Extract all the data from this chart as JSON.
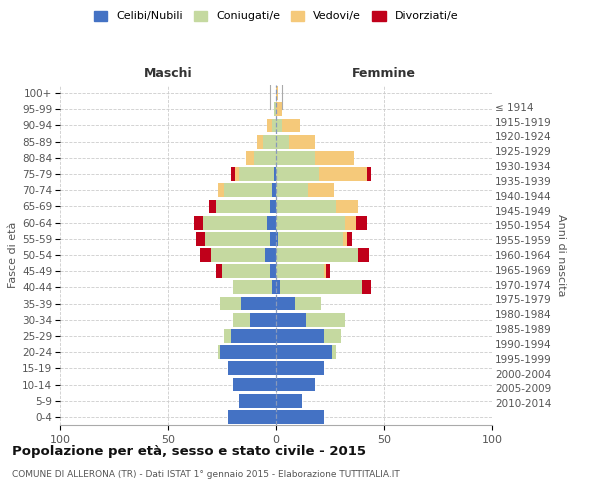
{
  "age_groups": [
    "0-4",
    "5-9",
    "10-14",
    "15-19",
    "20-24",
    "25-29",
    "30-34",
    "35-39",
    "40-44",
    "45-49",
    "50-54",
    "55-59",
    "60-64",
    "65-69",
    "70-74",
    "75-79",
    "80-84",
    "85-89",
    "90-94",
    "95-99",
    "100+"
  ],
  "birth_years": [
    "2010-2014",
    "2005-2009",
    "2000-2004",
    "1995-1999",
    "1990-1994",
    "1985-1989",
    "1980-1984",
    "1975-1979",
    "1970-1974",
    "1965-1969",
    "1960-1964",
    "1955-1959",
    "1950-1954",
    "1945-1949",
    "1940-1944",
    "1935-1939",
    "1930-1934",
    "1925-1929",
    "1920-1924",
    "1915-1919",
    "≤ 1914"
  ],
  "colors": {
    "celibi": "#4472C4",
    "coniugati": "#C5D9A0",
    "vedovi": "#F5C97A",
    "divorziati": "#C0001A"
  },
  "maschi": {
    "celibi": [
      22,
      17,
      20,
      22,
      26,
      21,
      12,
      16,
      2,
      3,
      5,
      3,
      4,
      3,
      2,
      1,
      0,
      0,
      0,
      0,
      0
    ],
    "coniugati": [
      0,
      0,
      0,
      0,
      1,
      3,
      8,
      10,
      18,
      22,
      25,
      30,
      30,
      25,
      22,
      16,
      10,
      6,
      2,
      1,
      0
    ],
    "vedovi": [
      0,
      0,
      0,
      0,
      0,
      0,
      0,
      0,
      0,
      0,
      0,
      0,
      0,
      0,
      3,
      2,
      4,
      3,
      2,
      0,
      0
    ],
    "divorziati": [
      0,
      0,
      0,
      0,
      0,
      0,
      0,
      0,
      0,
      3,
      5,
      4,
      4,
      3,
      0,
      2,
      0,
      0,
      0,
      0,
      0
    ]
  },
  "femmine": {
    "celibi": [
      22,
      12,
      18,
      22,
      26,
      22,
      14,
      9,
      2,
      0,
      0,
      1,
      0,
      0,
      0,
      0,
      0,
      0,
      0,
      0,
      0
    ],
    "coniugati": [
      0,
      0,
      0,
      0,
      2,
      8,
      18,
      12,
      38,
      22,
      38,
      30,
      32,
      28,
      15,
      20,
      18,
      6,
      3,
      0,
      0
    ],
    "vedovi": [
      0,
      0,
      0,
      0,
      0,
      0,
      0,
      0,
      0,
      1,
      0,
      2,
      5,
      10,
      12,
      22,
      18,
      12,
      8,
      3,
      1
    ],
    "divorziati": [
      0,
      0,
      0,
      0,
      0,
      0,
      0,
      0,
      4,
      2,
      5,
      2,
      5,
      0,
      0,
      2,
      0,
      0,
      0,
      0,
      0
    ]
  },
  "title": "Popolazione per età, sesso e stato civile - 2015",
  "subtitle": "COMUNE DI ALLERONA (TR) - Dati ISTAT 1° gennaio 2015 - Elaborazione TUTTITALIA.IT",
  "xlabel_left": "Maschi",
  "xlabel_right": "Femmine",
  "ylabel_left": "Fasce di età",
  "ylabel_right": "Anni di nascita",
  "legend_labels": [
    "Celibi/Nubili",
    "Coniugati/e",
    "Vedovi/e",
    "Divorziati/e"
  ],
  "xlim": 100,
  "background_color": "#ffffff",
  "grid_color": "#cccccc"
}
